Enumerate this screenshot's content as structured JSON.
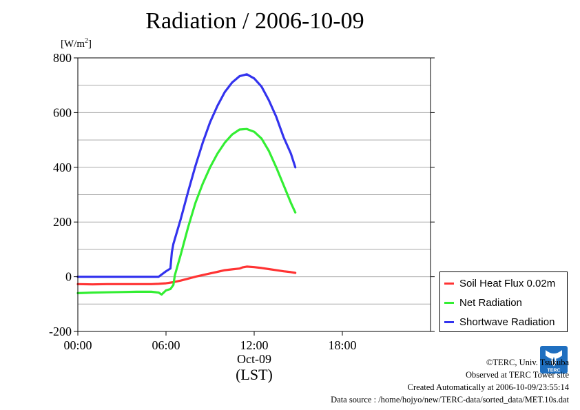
{
  "page": {
    "title": "Radiation / 2006-10-09",
    "unit_label_main": "[W/m",
    "unit_label_sup": "2",
    "unit_label_end": "]",
    "date_label": "Oct-09",
    "tz_label": "(LST)",
    "credits": [
      "©TERC, Univ. Tsukuba",
      "Observed at TERC Tower site",
      "Created Automatically at 2006-10-09/23:55:14",
      "Data source : /home/hojyo/new/TERC-data/sorted_data/MET.10s.dat"
    ],
    "logo_icon": "terc-logo-icon"
  },
  "chart_data": {
    "type": "line",
    "title": "Radiation / 2006-10-09",
    "ylabel": "[W/m2]",
    "xlabel": "Oct-09 (LST)",
    "xlim": [
      0,
      24
    ],
    "ylim": [
      -200,
      800
    ],
    "x_ticks": [
      0,
      6,
      12,
      18
    ],
    "x_tick_labels": [
      "00:00",
      "06:00",
      "12:00",
      "18:00"
    ],
    "y_ticks": [
      -200,
      0,
      200,
      400,
      600,
      800
    ],
    "y_tick_labels": [
      "-200",
      "0",
      "200",
      "400",
      "600",
      "800"
    ],
    "grid": true,
    "legend_position": "right-outside",
    "series": [
      {
        "name": "Soil Heat Flux 0.02m",
        "color": "#ff3333",
        "x": [
          0,
          1,
          2,
          3,
          4,
          5,
          5.5,
          6,
          6.5,
          7,
          7.5,
          8,
          8.5,
          9,
          9.5,
          10,
          10.5,
          11,
          11.2,
          11.5,
          12,
          12.5,
          13,
          13.5,
          14,
          14.5,
          14.8
        ],
        "y": [
          -27,
          -28,
          -27,
          -27,
          -27,
          -27,
          -26,
          -24,
          -20,
          -14,
          -7,
          0,
          6,
          12,
          18,
          24,
          27,
          30,
          34,
          37,
          35,
          32,
          28,
          24,
          20,
          17,
          14
        ]
      },
      {
        "name": "Net Radiation",
        "color": "#33ee33",
        "x": [
          0,
          1,
          2,
          3,
          4,
          5,
          5.5,
          5.7,
          6,
          6.3,
          6.5,
          6.6,
          7,
          7.5,
          8,
          8.5,
          9,
          9.5,
          10,
          10.5,
          11,
          11.5,
          12,
          12.5,
          13,
          13.5,
          14,
          14.5,
          14.8
        ],
        "y": [
          -60,
          -58,
          -57,
          -56,
          -55,
          -55,
          -58,
          -65,
          -50,
          -45,
          -30,
          5,
          80,
          180,
          270,
          340,
          400,
          450,
          490,
          520,
          538,
          540,
          530,
          505,
          460,
          400,
          335,
          270,
          235
        ]
      },
      {
        "name": "Shortwave Radiation",
        "color": "#3333ee",
        "x": [
          0,
          1,
          2,
          3,
          4,
          5,
          5.5,
          6,
          6.3,
          6.4,
          6.5,
          7,
          7.5,
          8,
          8.5,
          9,
          9.5,
          10,
          10.5,
          11,
          11.5,
          12,
          12.5,
          13,
          13.5,
          14,
          14.5,
          14.8
        ],
        "y": [
          0,
          0,
          0,
          0,
          0,
          0,
          0,
          20,
          30,
          90,
          120,
          210,
          310,
          405,
          490,
          565,
          625,
          675,
          710,
          733,
          740,
          725,
          695,
          645,
          585,
          510,
          450,
          400
        ]
      }
    ]
  }
}
